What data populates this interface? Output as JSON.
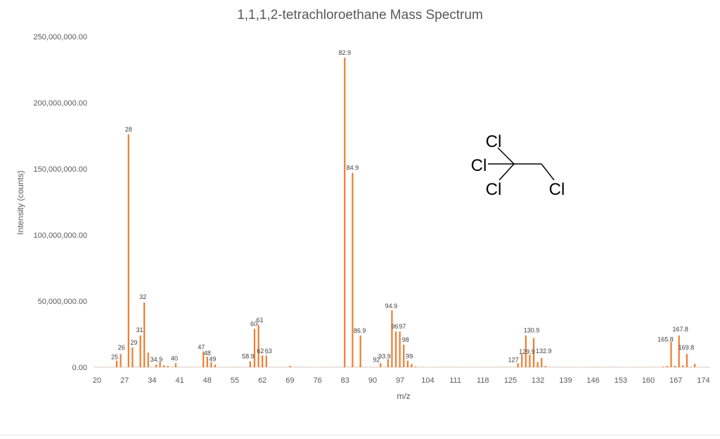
{
  "chart_data": {
    "type": "bar",
    "title": "1,1,1,2-tetrachloroethane Mass Spectrum",
    "xlabel": "m/z",
    "ylabel": "Intensity (counts)",
    "xlim": [
      20,
      175
    ],
    "ylim": [
      0,
      250000000
    ],
    "x_ticks": [
      "20",
      "27",
      "34",
      "41",
      "48",
      "55",
      "62",
      "69",
      "76",
      "83",
      "90",
      "97",
      "104",
      "111",
      "118",
      "125",
      "132",
      "139",
      "146",
      "153",
      "160",
      "167",
      "174"
    ],
    "y_ticks": [
      "0.00",
      "50,000,000.00",
      "100,000,000.00",
      "150,000,000.00",
      "200,000,000.00",
      "250,000,000.00"
    ],
    "grid": false,
    "legend": "none",
    "bar_color": "#ED7D31",
    "x": [
      25,
      26,
      28,
      29,
      31,
      32,
      33,
      35,
      36,
      37,
      38,
      40,
      47,
      48,
      49,
      50,
      58.9,
      60,
      61,
      62,
      63,
      69,
      82.9,
      84.9,
      86.9,
      92,
      93.9,
      94.9,
      95.9,
      96.9,
      97.9,
      98.9,
      99.9,
      100.9,
      126.9,
      127.9,
      128.9,
      129.9,
      130.9,
      131.9,
      132.9,
      133.9,
      163.8,
      164.8,
      165.8,
      166.8,
      167.8,
      168.8,
      169.8,
      170.8,
      171.8
    ],
    "values": [
      5000000,
      10000000,
      176000000,
      15000000,
      24000000,
      49000000,
      11000000,
      2000000,
      4000000,
      1500000,
      1000000,
      3000000,
      12000000,
      8000000,
      4000000,
      2000000,
      4500000,
      29000000,
      32000000,
      9000000,
      8500000,
      1000000,
      234000000,
      147000000,
      24000000,
      3000000,
      6000000,
      43000000,
      27000000,
      27000000,
      17000000,
      5000000,
      2500000,
      600000,
      3000000,
      10000000,
      24000000,
      9500000,
      22000000,
      4000000,
      7000000,
      1000000,
      500000,
      1000000,
      19000000,
      1000000,
      24000000,
      1500000,
      10000000,
      300000,
      2500000
    ],
    "annotations": [
      {
        "text": "25",
        "x": 25
      },
      {
        "text": "26",
        "x": 26
      },
      {
        "text": "28",
        "x": 28
      },
      {
        "text": "29",
        "x": 29
      },
      {
        "text": "31",
        "x": 31
      },
      {
        "text": "32",
        "x": 32
      },
      {
        "text": "34.9",
        "x": 34.9
      },
      {
        "text": "40",
        "x": 40
      },
      {
        "text": "47",
        "x": 47
      },
      {
        "text": "48",
        "x": 48
      },
      {
        "text": "49",
        "x": 49
      },
      {
        "text": "58.9",
        "x": 58.9
      },
      {
        "text": "60",
        "x": 60
      },
      {
        "text": "61",
        "x": 61
      },
      {
        "text": "62",
        "x": 62
      },
      {
        "text": "63",
        "x": 63
      },
      {
        "text": "82.9",
        "x": 82.9
      },
      {
        "text": "84.9",
        "x": 84.9
      },
      {
        "text": "86.9",
        "x": 86.9
      },
      {
        "text": "92",
        "x": 92
      },
      {
        "text": "93.9",
        "x": 93.9
      },
      {
        "text": "94.9",
        "x": 94.9
      },
      {
        "text": "96",
        "x": 96
      },
      {
        "text": "97",
        "x": 97
      },
      {
        "text": "98",
        "x": 98
      },
      {
        "text": "99",
        "x": 99
      },
      {
        "text": "127",
        "x": 127
      },
      {
        "text": "129.9",
        "x": 129.9
      },
      {
        "text": "130.9",
        "x": 130.9
      },
      {
        "text": "132.9",
        "x": 132.9
      },
      {
        "text": "165.8",
        "x": 165.8
      },
      {
        "text": "167.8",
        "x": 167.8
      },
      {
        "text": "169.8",
        "x": 169.8
      }
    ]
  },
  "molecule": {
    "atom_labels": [
      "Cl",
      "Cl",
      "Cl",
      "Cl"
    ]
  }
}
